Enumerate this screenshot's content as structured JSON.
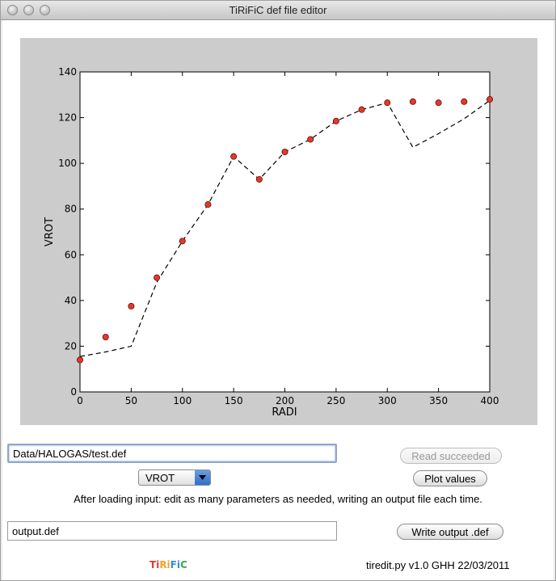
{
  "window": {
    "title": "TiRiFiC def file editor"
  },
  "chart_data": {
    "type": "scatter",
    "title": "",
    "xlabel": "RADI",
    "ylabel": "VROT",
    "xlim": [
      0,
      400
    ],
    "ylim": [
      0,
      140
    ],
    "xticks": [
      0,
      50,
      100,
      150,
      200,
      250,
      300,
      350,
      400
    ],
    "yticks": [
      0,
      20,
      40,
      60,
      80,
      100,
      120,
      140
    ],
    "grid": false,
    "points": {
      "style": "red-circle",
      "x": [
        0,
        25,
        50,
        75,
        100,
        125,
        150,
        175,
        200,
        225,
        250,
        275,
        300,
        325,
        350,
        375,
        400
      ],
      "y": [
        14,
        24,
        37.5,
        50,
        66,
        82,
        103,
        93,
        105,
        110.5,
        118.5,
        123.5,
        126.5,
        127,
        126.5,
        127,
        128
      ]
    },
    "line": {
      "style": "black-dashed",
      "x": [
        0,
        25,
        50,
        75,
        100,
        125,
        150,
        175,
        200,
        225,
        250,
        275,
        300,
        325,
        350,
        375,
        400
      ],
      "y": [
        15.5,
        17.5,
        20,
        48,
        66,
        82,
        103,
        93,
        105,
        110.5,
        118.5,
        123.5,
        126.5,
        107,
        113,
        119.5,
        127.5
      ]
    }
  },
  "controls": {
    "file_value": "Data/HALOGAS/test.def",
    "read_label": "Read succeeded",
    "plot_label": "Plot values",
    "param_selected": "VROT",
    "hint": "After loading input: edit as many parameters as needed, writing an output file each time.",
    "output_value": "output.def",
    "write_label": "Write output .def"
  },
  "footer": {
    "logo_text": "TiRiFiC",
    "version": "tiredit.py v1.0 GHH 22/03/2011"
  },
  "colors": {
    "point_fill": "#e8382a",
    "plot_bg": "#cccccc",
    "select_accent": "#3f7fd6"
  }
}
